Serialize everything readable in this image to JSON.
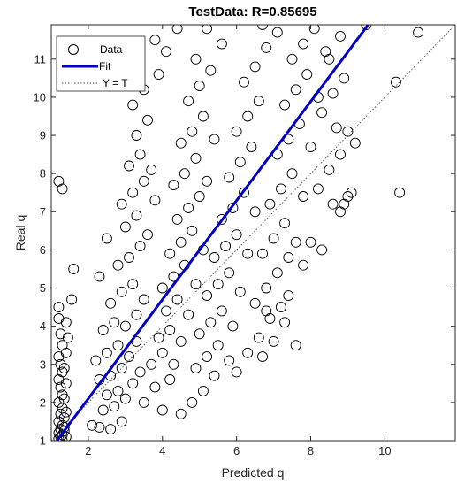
{
  "chart_data": {
    "type": "scatter",
    "title": "TestData: R=0.85695",
    "xlabel": "Predicted q",
    "ylabel": "Real q",
    "xlim": [
      1,
      11.9
    ],
    "ylim": [
      1,
      11.9
    ],
    "xticks": [
      2,
      4,
      6,
      8,
      10
    ],
    "yticks": [
      1,
      2,
      3,
      4,
      5,
      6,
      7,
      8,
      9,
      10,
      11
    ],
    "grid": false,
    "legend_position": "top-left",
    "legend": [
      {
        "label": "Data",
        "style": "circle-marker",
        "color": "#000000"
      },
      {
        "label": "Fit",
        "style": "solid-line",
        "color": "#0000c8"
      },
      {
        "label": "Y = T",
        "style": "dotted-line",
        "color": "#555555"
      }
    ],
    "series": [
      {
        "name": "Data",
        "marker": "open-circle",
        "color": "#000000",
        "points": [
          [
            1.2,
            1.05
          ],
          [
            1.25,
            1.1
          ],
          [
            1.3,
            1.15
          ],
          [
            1.2,
            1.2
          ],
          [
            1.35,
            1.25
          ],
          [
            1.25,
            1.3
          ],
          [
            1.3,
            1.4
          ],
          [
            1.2,
            1.5
          ],
          [
            1.35,
            1.6
          ],
          [
            1.25,
            1.7
          ],
          [
            1.3,
            1.85
          ],
          [
            1.2,
            2.0
          ],
          [
            1.3,
            2.2
          ],
          [
            1.25,
            2.4
          ],
          [
            1.2,
            2.6
          ],
          [
            1.3,
            2.8
          ],
          [
            1.25,
            3.0
          ],
          [
            1.2,
            3.2
          ],
          [
            1.3,
            3.5
          ],
          [
            1.25,
            3.8
          ],
          [
            1.2,
            4.2
          ],
          [
            1.2,
            4.5
          ],
          [
            1.3,
            1.0
          ],
          [
            1.4,
            1.1
          ],
          [
            1.35,
            1.35
          ],
          [
            1.4,
            1.75
          ],
          [
            1.35,
            2.1
          ],
          [
            1.4,
            2.5
          ],
          [
            1.35,
            2.9
          ],
          [
            1.4,
            3.3
          ],
          [
            1.45,
            3.7
          ],
          [
            1.4,
            4.1
          ],
          [
            1.55,
            4.7
          ],
          [
            1.6,
            5.5
          ],
          [
            1.3,
            7.6
          ],
          [
            1.2,
            7.8
          ],
          [
            2.1,
            1.4
          ],
          [
            2.3,
            1.35
          ],
          [
            2.6,
            1.3
          ],
          [
            2.9,
            1.5
          ],
          [
            2.4,
            1.8
          ],
          [
            2.7,
            1.9
          ],
          [
            2.5,
            2.2
          ],
          [
            2.8,
            2.3
          ],
          [
            3.0,
            2.1
          ],
          [
            2.3,
            2.6
          ],
          [
            2.6,
            2.7
          ],
          [
            2.9,
            2.9
          ],
          [
            3.2,
            2.5
          ],
          [
            3.4,
            2.8
          ],
          [
            2.2,
            3.1
          ],
          [
            2.5,
            3.3
          ],
          [
            2.8,
            3.5
          ],
          [
            3.1,
            3.2
          ],
          [
            3.3,
            3.6
          ],
          [
            2.4,
            3.9
          ],
          [
            2.7,
            4.1
          ],
          [
            3.0,
            4.0
          ],
          [
            3.3,
            4.3
          ],
          [
            2.6,
            4.6
          ],
          [
            2.9,
            4.9
          ],
          [
            3.2,
            5.1
          ],
          [
            3.5,
            4.7
          ],
          [
            2.3,
            5.3
          ],
          [
            2.8,
            5.6
          ],
          [
            3.1,
            5.8
          ],
          [
            3.4,
            6.1
          ],
          [
            2.5,
            6.3
          ],
          [
            3.0,
            6.6
          ],
          [
            3.3,
            6.9
          ],
          [
            3.6,
            6.4
          ],
          [
            2.9,
            7.2
          ],
          [
            3.2,
            7.5
          ],
          [
            3.5,
            7.8
          ],
          [
            3.8,
            7.3
          ],
          [
            3.1,
            8.2
          ],
          [
            3.4,
            8.5
          ],
          [
            3.7,
            8.1
          ],
          [
            3.3,
            9.0
          ],
          [
            3.6,
            9.4
          ],
          [
            3.2,
            9.8
          ],
          [
            3.5,
            10.2
          ],
          [
            3.9,
            10.6
          ],
          [
            4.1,
            11.2
          ],
          [
            4.4,
            11.8
          ],
          [
            3.8,
            11.5
          ],
          [
            3.5,
            2.0
          ],
          [
            3.8,
            2.4
          ],
          [
            4.0,
            1.8
          ],
          [
            4.2,
            2.6
          ],
          [
            3.7,
            3.0
          ],
          [
            4.0,
            3.3
          ],
          [
            4.3,
            3.0
          ],
          [
            3.9,
            3.7
          ],
          [
            4.2,
            3.9
          ],
          [
            4.5,
            3.6
          ],
          [
            4.1,
            4.4
          ],
          [
            4.4,
            4.7
          ],
          [
            4.7,
            4.3
          ],
          [
            4.0,
            5.0
          ],
          [
            4.3,
            5.3
          ],
          [
            4.6,
            5.6
          ],
          [
            4.9,
            5.1
          ],
          [
            4.2,
            5.9
          ],
          [
            4.5,
            6.2
          ],
          [
            4.8,
            6.5
          ],
          [
            5.1,
            6.0
          ],
          [
            4.4,
            6.8
          ],
          [
            4.7,
            7.1
          ],
          [
            5.0,
            7.4
          ],
          [
            4.3,
            7.7
          ],
          [
            4.6,
            8.0
          ],
          [
            4.9,
            8.4
          ],
          [
            5.2,
            7.8
          ],
          [
            4.5,
            8.8
          ],
          [
            4.8,
            9.1
          ],
          [
            5.1,
            9.5
          ],
          [
            5.4,
            8.9
          ],
          [
            4.7,
            9.9
          ],
          [
            5.0,
            10.3
          ],
          [
            5.3,
            10.7
          ],
          [
            4.9,
            11.0
          ],
          [
            5.6,
            11.4
          ],
          [
            5.2,
            11.8
          ],
          [
            4.5,
            1.7
          ],
          [
            4.8,
            2.0
          ],
          [
            5.1,
            2.3
          ],
          [
            5.4,
            2.7
          ],
          [
            4.9,
            2.9
          ],
          [
            5.2,
            3.2
          ],
          [
            5.5,
            3.5
          ],
          [
            5.8,
            3.1
          ],
          [
            5.0,
            3.8
          ],
          [
            5.3,
            4.1
          ],
          [
            5.6,
            4.4
          ],
          [
            5.9,
            4.0
          ],
          [
            5.2,
            4.8
          ],
          [
            5.5,
            5.1
          ],
          [
            5.8,
            5.4
          ],
          [
            6.1,
            4.9
          ],
          [
            5.4,
            5.8
          ],
          [
            5.7,
            6.1
          ],
          [
            6.0,
            6.4
          ],
          [
            6.3,
            5.9
          ],
          [
            5.6,
            6.8
          ],
          [
            5.9,
            7.1
          ],
          [
            6.2,
            7.5
          ],
          [
            6.5,
            7.0
          ],
          [
            5.8,
            7.9
          ],
          [
            6.1,
            8.3
          ],
          [
            6.4,
            8.7
          ],
          [
            6.0,
            9.1
          ],
          [
            6.3,
            9.5
          ],
          [
            6.6,
            9.9
          ],
          [
            6.2,
            10.4
          ],
          [
            6.5,
            10.8
          ],
          [
            6.8,
            11.3
          ],
          [
            7.1,
            11.7
          ],
          [
            6.7,
            11.9
          ],
          [
            6.0,
            2.8
          ],
          [
            6.3,
            3.3
          ],
          [
            6.6,
            3.7
          ],
          [
            6.9,
            4.2
          ],
          [
            6.5,
            4.6
          ],
          [
            6.8,
            5.0
          ],
          [
            7.1,
            5.4
          ],
          [
            7.4,
            4.8
          ],
          [
            6.7,
            5.9
          ],
          [
            7.0,
            6.3
          ],
          [
            7.3,
            6.7
          ],
          [
            7.6,
            6.2
          ],
          [
            6.9,
            7.2
          ],
          [
            7.2,
            7.6
          ],
          [
            7.5,
            8.0
          ],
          [
            7.8,
            7.4
          ],
          [
            7.1,
            8.5
          ],
          [
            7.4,
            8.9
          ],
          [
            7.7,
            9.3
          ],
          [
            8.0,
            8.7
          ],
          [
            7.3,
            9.8
          ],
          [
            7.6,
            10.2
          ],
          [
            7.9,
            10.6
          ],
          [
            8.2,
            10.0
          ],
          [
            7.5,
            11.0
          ],
          [
            7.8,
            11.4
          ],
          [
            8.1,
            11.8
          ],
          [
            8.4,
            11.2
          ],
          [
            6.7,
            3.2
          ],
          [
            7.0,
            3.6
          ],
          [
            7.3,
            4.1
          ],
          [
            7.6,
            3.5
          ],
          [
            7.2,
            4.5
          ],
          [
            6.8,
            4.4
          ],
          [
            7.4,
            5.8
          ],
          [
            7.8,
            5.6
          ],
          [
            8.0,
            6.2
          ],
          [
            8.3,
            6.0
          ],
          [
            8.6,
            7.2
          ],
          [
            8.8,
            7.0
          ],
          [
            8.5,
            8.1
          ],
          [
            8.8,
            8.5
          ],
          [
            9.0,
            7.4
          ],
          [
            9.2,
            8.8
          ],
          [
            8.7,
            9.2
          ],
          [
            9.0,
            9.1
          ],
          [
            8.3,
            9.6
          ],
          [
            8.6,
            10.1
          ],
          [
            8.9,
            10.5
          ],
          [
            8.5,
            11.0
          ],
          [
            8.8,
            11.6
          ],
          [
            9.5,
            11.9
          ],
          [
            10.3,
            10.4
          ],
          [
            10.9,
            11.7
          ],
          [
            10.4,
            7.5
          ],
          [
            8.9,
            7.2
          ],
          [
            9.1,
            7.5
          ],
          [
            8.2,
            7.6
          ]
        ]
      }
    ],
    "fit": {
      "name": "Fit",
      "x": [
        1.15,
        9.55
      ],
      "y": [
        1.0,
        11.9
      ],
      "color": "#0000c8"
    },
    "reference": {
      "name": "Y = T",
      "x": [
        1,
        11.9
      ],
      "y": [
        1,
        11.9
      ],
      "color": "#555555"
    }
  }
}
